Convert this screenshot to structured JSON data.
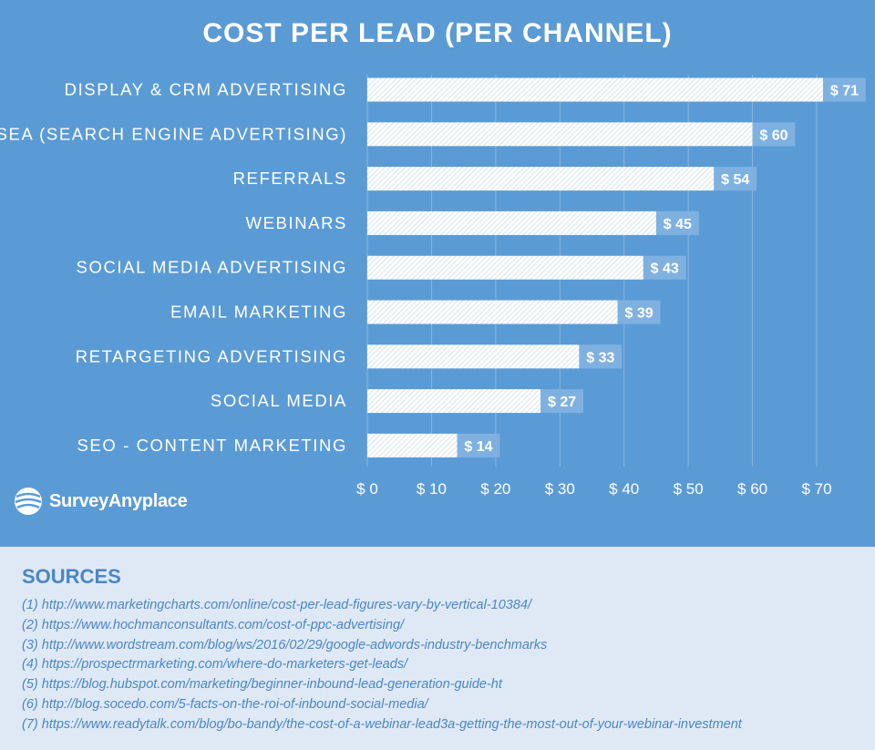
{
  "chart_data": {
    "type": "bar",
    "orientation": "horizontal",
    "title": "COST PER LEAD (PER CHANNEL)",
    "categories": [
      "DISPLAY & CRM ADVERTISING",
      "SEA (SEARCH ENGINE ADVERTISING)",
      "REFERRALS",
      "WEBINARS",
      "SOCIAL MEDIA ADVERTISING",
      "EMAIL MARKETING",
      "RETARGETING ADVERTISING",
      "SOCIAL MEDIA",
      "SEO - CONTENT MARKETING"
    ],
    "values": [
      71,
      60,
      54,
      45,
      43,
      39,
      33,
      27,
      14
    ],
    "value_labels": [
      "$ 71",
      "$ 60",
      "$ 54",
      "$ 45",
      "$ 43",
      "$ 39",
      "$ 33",
      "$ 27",
      "$ 14"
    ],
    "x_ticks": [
      0,
      10,
      20,
      30,
      40,
      50,
      60,
      70
    ],
    "x_tick_labels": [
      "$ 0",
      "$ 10",
      "$ 20",
      "$ 30",
      "$ 40",
      "$ 50",
      "$ 60",
      "$ 70"
    ],
    "xlim": [
      0,
      70
    ],
    "grid": "vertical",
    "colors": {
      "background": "#5b9bd5",
      "bar": "#ffffff",
      "label_box": "#7fb1e0",
      "text": "#ffffff"
    }
  },
  "brand": {
    "name": "SurveyAnyplace",
    "icon": "survey-anyplace-logo-icon"
  },
  "sources": {
    "title": "SOURCES",
    "items": [
      "(1) http://www.marketingcharts.com/online/cost-per-lead-figures-vary-by-vertical-10384/",
      "(2) https://www.hochmanconsultants.com/cost-of-ppc-advertising/",
      "(3) http://www.wordstream.com/blog/ws/2016/02/29/google-adwords-industry-benchmarks",
      "(4) https://prospectrmarketing.com/where-do-marketers-get-leads/",
      "(5) https://blog.hubspot.com/marketing/beginner-inbound-lead-generation-guide-ht",
      "(6) http://blog.socedo.com/5-facts-on-the-roi-of-inbound-social-media/",
      "(7) https://www.readytalk.com/blog/bo-bandy/the-cost-of-a-webinar-lead3a-getting-the-most-out-of-your-webinar-investment"
    ]
  }
}
